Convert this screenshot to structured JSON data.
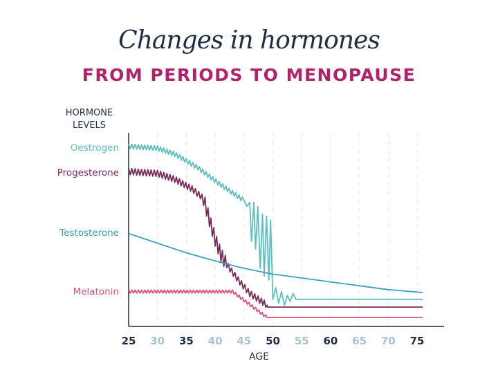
{
  "chart_data": {
    "type": "line",
    "title": "Changes in hormones",
    "subtitle": "FROM PERIODS TO MENOPAUSE",
    "ylabel": "HORMONE LEVELS",
    "xlabel": "AGE",
    "xlim": [
      25,
      80
    ],
    "ylim": [
      0,
      100
    ],
    "x_ticks": [
      {
        "label": "25",
        "emphasis": true
      },
      {
        "label": "30",
        "emphasis": false
      },
      {
        "label": "35",
        "emphasis": true
      },
      {
        "label": "40",
        "emphasis": false
      },
      {
        "label": "45",
        "emphasis": false
      },
      {
        "label": "50",
        "emphasis": true
      },
      {
        "label": "55",
        "emphasis": false
      },
      {
        "label": "60",
        "emphasis": true
      },
      {
        "label": "65",
        "emphasis": false
      },
      {
        "label": "70",
        "emphasis": false
      },
      {
        "label": "75",
        "emphasis": true
      }
    ],
    "grid": "vertical dashed",
    "legend": "left labels",
    "series": [
      {
        "name": "Oestrogen",
        "color": "#5bbfbf",
        "fluctuation": 1.2,
        "points": [
          [
            25,
            93
          ],
          [
            30,
            92
          ],
          [
            33,
            89
          ],
          [
            37,
            82
          ],
          [
            41,
            73
          ],
          [
            45,
            65
          ],
          [
            45.5,
            62
          ],
          [
            46,
            64
          ],
          [
            46.3,
            44
          ],
          [
            46.7,
            64
          ],
          [
            47,
            40
          ],
          [
            47.4,
            62
          ],
          [
            47.8,
            30
          ],
          [
            48.2,
            58
          ],
          [
            48.5,
            26
          ],
          [
            48.9,
            57
          ],
          [
            49.3,
            24
          ],
          [
            49.6,
            55
          ],
          [
            50,
            14
          ],
          [
            50.5,
            20
          ],
          [
            51,
            12
          ],
          [
            51.5,
            18
          ],
          [
            52,
            11
          ],
          [
            52.5,
            16
          ],
          [
            53,
            13
          ],
          [
            53.5,
            17
          ],
          [
            54,
            14
          ],
          [
            76,
            14
          ]
        ]
      },
      {
        "name": "Progesterone",
        "color": "#7a2a5a",
        "fluctuation": 1.6,
        "points": [
          [
            25,
            80
          ],
          [
            30,
            79
          ],
          [
            33,
            76
          ],
          [
            36,
            71
          ],
          [
            38,
            66
          ],
          [
            39,
            55
          ],
          [
            40,
            45
          ],
          [
            41,
            37
          ],
          [
            42,
            32
          ],
          [
            44,
            24
          ],
          [
            46,
            17
          ],
          [
            48,
            13
          ],
          [
            49,
            11
          ],
          [
            49.1,
            10
          ],
          [
            76,
            10
          ]
        ]
      },
      {
        "name": "Testosterone",
        "color": "#3a9fc0",
        "fluctuation": 0,
        "points": [
          [
            25,
            48
          ],
          [
            30,
            43
          ],
          [
            35,
            38
          ],
          [
            41,
            33
          ],
          [
            45,
            30
          ],
          [
            50,
            27
          ],
          [
            55,
            25
          ],
          [
            60,
            23
          ],
          [
            65,
            21
          ],
          [
            70,
            19
          ],
          [
            76,
            17.5
          ]
        ]
      },
      {
        "name": "Melatonin",
        "color": "#e0507a",
        "fluctuation": 0.8,
        "points": [
          [
            25,
            18
          ],
          [
            43,
            18
          ],
          [
            49,
            4.6
          ],
          [
            76,
            4.6
          ]
        ]
      }
    ]
  }
}
